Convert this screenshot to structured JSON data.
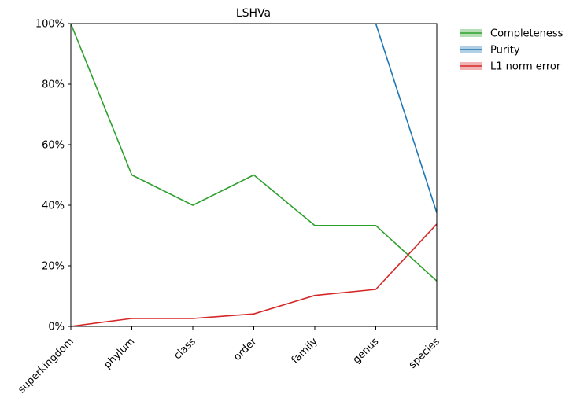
{
  "chart_data": {
    "type": "line",
    "title": "LSHVa",
    "categories": [
      "superkingdom",
      "phylum",
      "class",
      "order",
      "family",
      "genus",
      "species"
    ],
    "ylim": [
      0,
      100
    ],
    "yticks": [
      0,
      20,
      40,
      60,
      80,
      100
    ],
    "ytick_labels": [
      "0%",
      "20%",
      "40%",
      "60%",
      "80%",
      "100%"
    ],
    "grid": false,
    "legend_position": "outside-top-right",
    "series": [
      {
        "name": "Completeness",
        "color": "#2ca02c",
        "values": [
          100,
          50,
          40,
          50,
          33.3,
          33.3,
          15
        ]
      },
      {
        "name": "Purity",
        "color": "#1f77b4",
        "values": [
          null,
          null,
          null,
          null,
          null,
          100,
          37.5
        ]
      },
      {
        "name": "L1 norm error",
        "color": "#d62728",
        "values": [
          0,
          2.6,
          2.6,
          4.1,
          10.2,
          12.2,
          33.8
        ]
      }
    ]
  }
}
